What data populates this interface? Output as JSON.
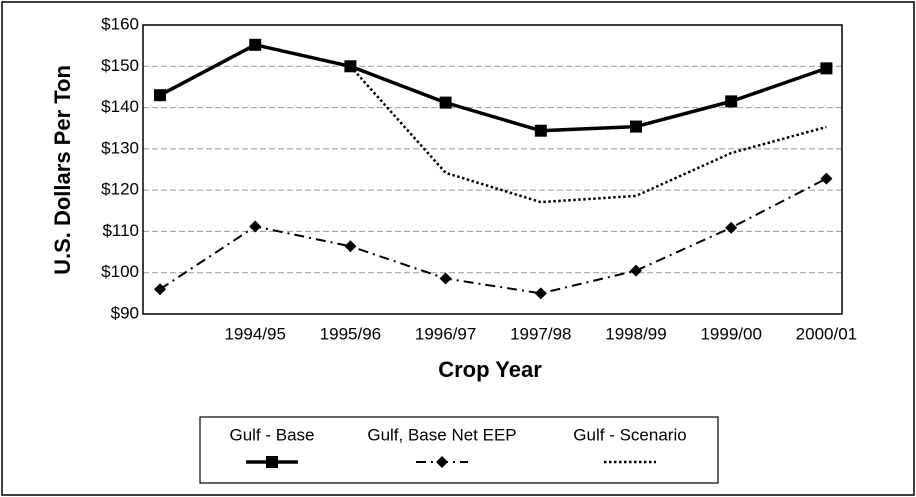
{
  "chart_data": {
    "type": "line",
    "x_label": "Crop Year",
    "y_label": "U.S. Dollars Per Ton",
    "categories": [
      null,
      "1994/95",
      "1995/96",
      "1996/97",
      "1997/98",
      "1998/99",
      "1999/00",
      "2000/01"
    ],
    "series": [
      {
        "name": "Gulf - Base",
        "color": "#000000",
        "line_style": "solid",
        "marker": "square",
        "values": [
          143,
          155.2,
          150,
          141.2,
          134.4,
          135.4,
          141.5,
          149.5
        ]
      },
      {
        "name": "Gulf, Base Net EEP",
        "color": "#000000",
        "line_style": "dashdot",
        "marker": "diamond",
        "values": [
          96,
          111.2,
          106.4,
          98.6,
          95,
          100.5,
          110.9,
          122.8
        ]
      },
      {
        "name": "Gulf - Scenario",
        "color": "#000000",
        "line_style": "dotted",
        "marker": "none",
        "values": [
          null,
          null,
          150,
          124.2,
          117.1,
          118.6,
          129,
          135.3
        ]
      }
    ],
    "ylim": [
      90,
      160
    ],
    "yticks": [
      {
        "value": 90,
        "label": "$90"
      },
      {
        "value": 100,
        "label": "$100"
      },
      {
        "value": 110,
        "label": "$110"
      },
      {
        "value": 120,
        "label": "$120"
      },
      {
        "value": 130,
        "label": "$130"
      },
      {
        "value": 140,
        "label": "$140"
      },
      {
        "value": 150,
        "label": "$150"
      },
      {
        "value": 160,
        "label": "$160"
      }
    ],
    "grid": true,
    "legend": "bottom"
  }
}
